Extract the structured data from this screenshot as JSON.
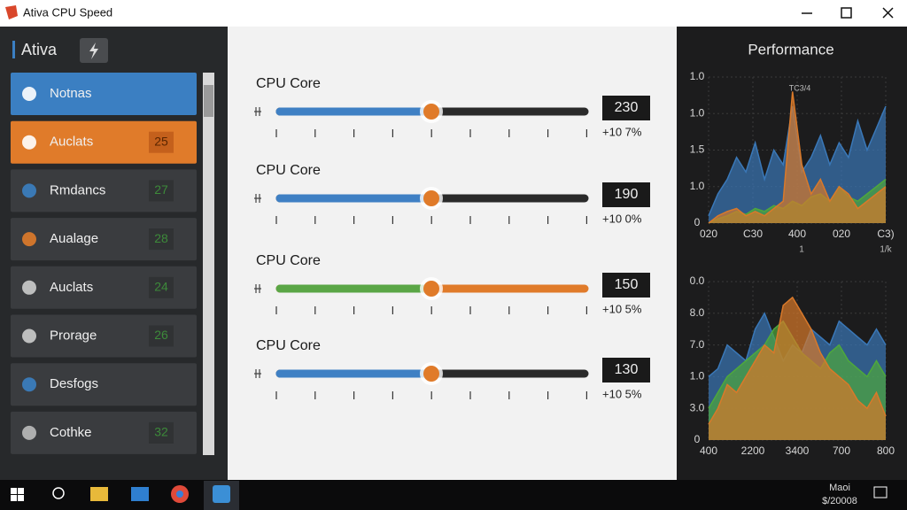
{
  "window": {
    "title": "Ativa CPU Speed"
  },
  "sidebar": {
    "title": "Ativa",
    "items": [
      {
        "label": "Notnas",
        "color": "#3b7fc2"
      },
      {
        "label": "Auclats",
        "badge": "25",
        "color": "#e07b2a"
      },
      {
        "label": "Rmdancs",
        "badge": "27",
        "color": "#3a3c3f"
      },
      {
        "label": "Aualage",
        "badge": "28",
        "color": "#3a3c3f"
      },
      {
        "label": "Auclats",
        "badge": "24",
        "color": "#3a3c3f"
      },
      {
        "label": "Prorage",
        "badge": "26",
        "color": "#3a3c3f"
      },
      {
        "label": "Desfogs",
        "color": "#3a3c3f"
      },
      {
        "label": "Cothke",
        "badge": "32",
        "color": "#3a3c3f"
      }
    ]
  },
  "controls": [
    {
      "label": "CPU Core",
      "value": "230",
      "delta": "+10 7%",
      "left_color": "#3f80c4",
      "right_color": "#2a2a2a"
    },
    {
      "label": "CPU Core",
      "value": "190",
      "delta": "+10 0%",
      "left_color": "#3f80c4",
      "right_color": "#2a2a2a"
    },
    {
      "label": "CPU Core",
      "value": "150",
      "delta": "+10 5%",
      "left_color": "#5aa646",
      "right_color": "#e07b2a"
    },
    {
      "label": "CPU Core",
      "value": "130",
      "delta": "+10 5%",
      "left_color": "#3f80c4",
      "right_color": "#2a2a2a"
    }
  ],
  "performance": {
    "title": "Performance",
    "charts": [
      {
        "annotation": "TC3/4",
        "ylabels": [
          "1.0",
          "1.0",
          "1.5",
          "1.0",
          "0"
        ],
        "xlabels": [
          "020",
          "C30",
          "400",
          "020",
          "C3)"
        ],
        "xsublabels": [
          "1",
          "1/k"
        ],
        "ylim": [
          0,
          100
        ],
        "series": [
          {
            "color": "#3a78b8",
            "values": [
              5,
              20,
              30,
              45,
              35,
              55,
              30,
              50,
              40,
              80,
              35,
              45,
              60,
              40,
              55,
              45,
              70,
              50,
              65,
              80
            ]
          },
          {
            "color": "#4ea83c",
            "values": [
              0,
              3,
              5,
              8,
              6,
              10,
              8,
              12,
              10,
              15,
              12,
              18,
              20,
              15,
              25,
              18,
              15,
              20,
              25,
              30
            ]
          },
          {
            "color": "#d9792a",
            "values": [
              0,
              5,
              8,
              10,
              5,
              8,
              5,
              10,
              15,
              90,
              40,
              20,
              30,
              15,
              25,
              20,
              10,
              15,
              20,
              25
            ]
          }
        ]
      },
      {
        "ylabels": [
          "0.0",
          "8.0",
          "7.0",
          "1.0",
          "3.0",
          "0"
        ],
        "xlabels": [
          "400",
          "2200",
          "3400",
          "700",
          "800"
        ],
        "ylim": [
          0,
          100
        ],
        "series": [
          {
            "color": "#3a78b8",
            "values": [
              40,
              45,
              60,
              55,
              50,
              70,
              80,
              65,
              50,
              60,
              55,
              70,
              65,
              60,
              75,
              70,
              65,
              60,
              70,
              60
            ]
          },
          {
            "color": "#4ea83c",
            "values": [
              20,
              30,
              40,
              45,
              50,
              55,
              60,
              70,
              75,
              65,
              55,
              50,
              45,
              55,
              60,
              50,
              45,
              40,
              50,
              40
            ]
          },
          {
            "color": "#d9792a",
            "values": [
              10,
              20,
              35,
              30,
              40,
              50,
              60,
              55,
              85,
              90,
              80,
              70,
              55,
              45,
              40,
              35,
              25,
              20,
              30,
              15
            ]
          }
        ]
      }
    ]
  },
  "taskbar": {
    "tray": [
      "Maoi",
      "$/20008"
    ]
  }
}
